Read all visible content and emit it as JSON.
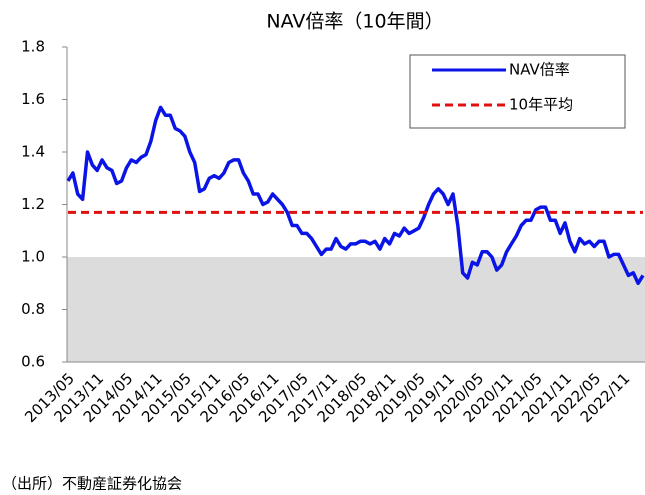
{
  "chart_data": {
    "type": "line",
    "title": "NAV倍率（10年間）",
    "categories": [
      "2013/05",
      null,
      null,
      null,
      null,
      null,
      "2013/11",
      null,
      null,
      null,
      null,
      null,
      "2014/05",
      null,
      null,
      null,
      null,
      null,
      "2014/11",
      null,
      null,
      null,
      null,
      null,
      "2015/05",
      null,
      null,
      null,
      null,
      null,
      "2015/11",
      null,
      null,
      null,
      null,
      null,
      "2016/05",
      null,
      null,
      null,
      null,
      null,
      "2016/11",
      null,
      null,
      null,
      null,
      null,
      "2017/05",
      null,
      null,
      null,
      null,
      null,
      "2017/11",
      null,
      null,
      null,
      null,
      null,
      "2018/05",
      null,
      null,
      null,
      null,
      null,
      "2018/11",
      null,
      null,
      null,
      null,
      null,
      "2019/05",
      null,
      null,
      null,
      null,
      null,
      "2019/11",
      null,
      null,
      null,
      null,
      null,
      "2020/05",
      null,
      null,
      null,
      null,
      null,
      "2020/11",
      null,
      null,
      null,
      null,
      null,
      "2021/05",
      null,
      null,
      null,
      null,
      null,
      "2021/11",
      null,
      null,
      null,
      null,
      null,
      "2022/05",
      null,
      null,
      null,
      null,
      null,
      "2022/11",
      null,
      null,
      null,
      null
    ],
    "series": [
      {
        "name": "NAV倍率",
        "color": "#0a14e6",
        "style": "solid",
        "values": [
          1.29,
          1.32,
          1.24,
          1.22,
          1.4,
          1.35,
          1.33,
          1.37,
          1.34,
          1.33,
          1.28,
          1.29,
          1.34,
          1.37,
          1.36,
          1.38,
          1.39,
          1.44,
          1.52,
          1.57,
          1.54,
          1.54,
          1.49,
          1.48,
          1.46,
          1.4,
          1.36,
          1.25,
          1.26,
          1.3,
          1.31,
          1.3,
          1.32,
          1.36,
          1.37,
          1.37,
          1.32,
          1.29,
          1.24,
          1.24,
          1.2,
          1.21,
          1.24,
          1.22,
          1.2,
          1.17,
          1.12,
          1.12,
          1.09,
          1.09,
          1.07,
          1.04,
          1.01,
          1.03,
          1.03,
          1.07,
          1.04,
          1.03,
          1.05,
          1.05,
          1.06,
          1.06,
          1.05,
          1.06,
          1.03,
          1.07,
          1.05,
          1.09,
          1.08,
          1.11,
          1.09,
          1.1,
          1.11,
          1.15,
          1.2,
          1.24,
          1.26,
          1.24,
          1.2,
          1.24,
          1.12,
          0.94,
          0.92,
          0.98,
          0.97,
          1.02,
          1.02,
          1.0,
          0.95,
          0.97,
          1.02,
          1.05,
          1.08,
          1.12,
          1.14,
          1.14,
          1.18,
          1.19,
          1.19,
          1.14,
          1.14,
          1.09,
          1.13,
          1.06,
          1.02,
          1.07,
          1.05,
          1.06,
          1.04,
          1.06,
          1.06,
          1.0,
          1.01,
          1.01,
          0.97,
          0.93,
          0.94,
          0.9,
          0.93
        ]
      },
      {
        "name": "10年平均",
        "color": "#e01010",
        "style": "dashed",
        "values": [
          1.17,
          1.17,
          1.17,
          1.17,
          1.17,
          1.17,
          1.17,
          1.17,
          1.17,
          1.17,
          1.17,
          1.17,
          1.17,
          1.17,
          1.17,
          1.17,
          1.17,
          1.17,
          1.17,
          1.17,
          1.17,
          1.17,
          1.17,
          1.17,
          1.17,
          1.17,
          1.17,
          1.17,
          1.17,
          1.17,
          1.17,
          1.17,
          1.17,
          1.17,
          1.17,
          1.17,
          1.17,
          1.17,
          1.17,
          1.17,
          1.17,
          1.17,
          1.17,
          1.17,
          1.17,
          1.17,
          1.17,
          1.17,
          1.17,
          1.17,
          1.17,
          1.17,
          1.17,
          1.17,
          1.17,
          1.17,
          1.17,
          1.17,
          1.17,
          1.17,
          1.17,
          1.17,
          1.17,
          1.17,
          1.17,
          1.17,
          1.17,
          1.17,
          1.17,
          1.17,
          1.17,
          1.17,
          1.17,
          1.17,
          1.17,
          1.17,
          1.17,
          1.17,
          1.17,
          1.17,
          1.17,
          1.17,
          1.17,
          1.17,
          1.17,
          1.17,
          1.17,
          1.17,
          1.17,
          1.17,
          1.17,
          1.17,
          1.17,
          1.17,
          1.17,
          1.17,
          1.17,
          1.17,
          1.17,
          1.17,
          1.17,
          1.17,
          1.17,
          1.17,
          1.17,
          1.17,
          1.17,
          1.17,
          1.17,
          1.17,
          1.17,
          1.17,
          1.17,
          1.17,
          1.17,
          1.17,
          1.17,
          1.17,
          1.17
        ]
      }
    ],
    "ylim": [
      0.6,
      1.8
    ],
    "yticks": [
      0.6,
      0.8,
      {
        "value": 1,
        "label": "1.0"
      },
      1.2,
      1.4,
      1.6,
      1.8
    ],
    "shade_below": 1,
    "shade_color": "#dcdcdc",
    "legend": "upper right",
    "source": "（出所）不動産証券化協会"
  }
}
